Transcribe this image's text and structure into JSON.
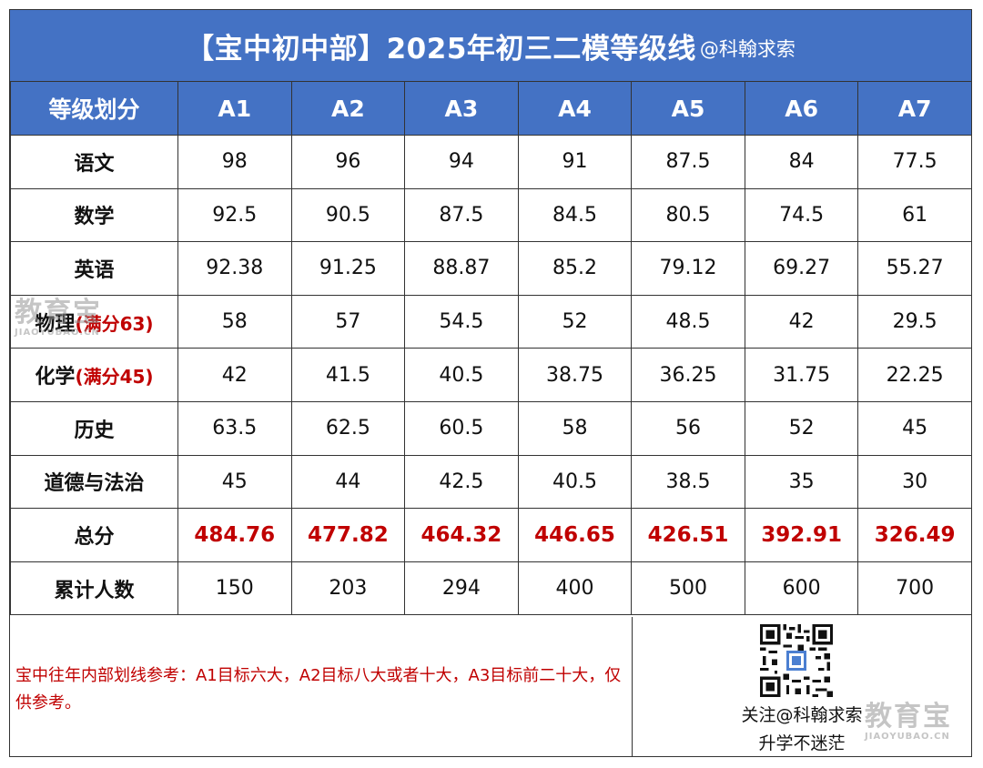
{
  "title": {
    "main": "【宝中初中部】2025年初三二模等级线",
    "handle": "@科翰求索"
  },
  "header": [
    "等级划分",
    "A1",
    "A2",
    "A3",
    "A4",
    "A5",
    "A6",
    "A7"
  ],
  "rows": [
    {
      "subject": "语文",
      "note": "",
      "values": [
        "98",
        "96",
        "94",
        "91",
        "87.5",
        "84",
        "77.5"
      ]
    },
    {
      "subject": "数学",
      "note": "",
      "values": [
        "92.5",
        "90.5",
        "87.5",
        "84.5",
        "80.5",
        "74.5",
        "61"
      ]
    },
    {
      "subject": "英语",
      "note": "",
      "values": [
        "92.38",
        "91.25",
        "88.87",
        "85.2",
        "79.12",
        "69.27",
        "55.27"
      ]
    },
    {
      "subject": "物理",
      "note": "(满分63)",
      "values": [
        "58",
        "57",
        "54.5",
        "52",
        "48.5",
        "42",
        "29.5"
      ]
    },
    {
      "subject": "化学",
      "note": "(满分45)",
      "values": [
        "42",
        "41.5",
        "40.5",
        "38.75",
        "36.25",
        "31.75",
        "22.25"
      ]
    },
    {
      "subject": "历史",
      "note": "",
      "values": [
        "63.5",
        "62.5",
        "60.5",
        "58",
        "56",
        "52",
        "45"
      ]
    },
    {
      "subject": "道德与法治",
      "note": "",
      "values": [
        "45",
        "44",
        "42.5",
        "40.5",
        "38.5",
        "35",
        "30"
      ]
    },
    {
      "subject": "总分",
      "note": "",
      "values": [
        "484.76",
        "477.82",
        "464.32",
        "446.65",
        "426.51",
        "392.91",
        "326.49"
      ]
    },
    {
      "subject": "累计人数",
      "note": "",
      "values": [
        "150",
        "203",
        "294",
        "400",
        "500",
        "600",
        "700"
      ]
    }
  ],
  "footer": {
    "reference": "宝中往年内部划线参考：A1目标六大，A2目标八大或者十大，A3目标前二十大，仅供参考。",
    "follow": "关注@科翰求索",
    "slogan": "升学不迷茫",
    "qr_icon": "qr-code-icon"
  },
  "watermark": {
    "text": "教育宝",
    "domain": "JIAOYUBAO.CN"
  },
  "colors": {
    "header_blue": "#4472c4",
    "highlight_red": "#c00000"
  }
}
